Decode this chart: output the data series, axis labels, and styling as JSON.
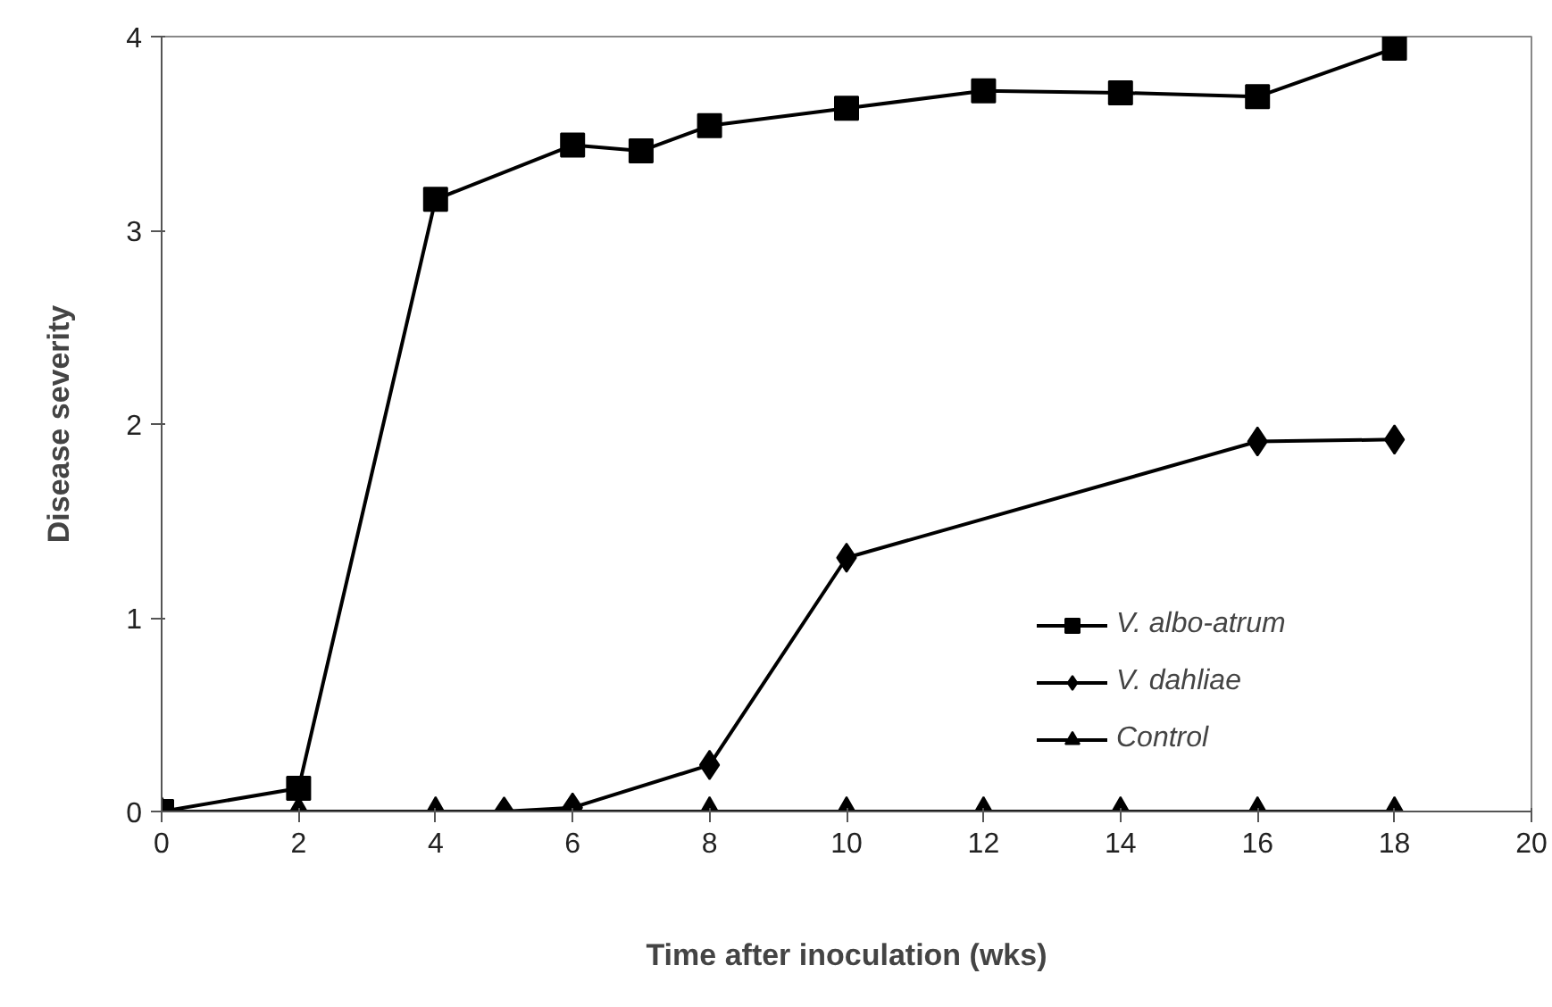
{
  "chart_data": {
    "type": "line",
    "xlabel": "Time after inoculation (wks)",
    "ylabel": "Disease severity",
    "xlim": [
      0,
      20
    ],
    "ylim": [
      0,
      4
    ],
    "xticks": [
      0,
      2,
      4,
      6,
      8,
      10,
      12,
      14,
      16,
      18,
      20
    ],
    "yticks": [
      0,
      1,
      2,
      3,
      4
    ],
    "grid": false,
    "legend": "right",
    "line_style": "solid",
    "series": [
      {
        "name": "V. albo-atrum",
        "color": "#000000",
        "marker": "square",
        "x": [
          0,
          2,
          4,
          6,
          7,
          8,
          10,
          12,
          14,
          16,
          18
        ],
        "values": [
          0,
          0.12,
          3.16,
          3.44,
          3.41,
          3.54,
          3.63,
          3.72,
          3.71,
          3.69,
          3.94
        ]
      },
      {
        "name": "V. dahliae",
        "color": "#000000",
        "marker": "diamond",
        "x": [
          5,
          6,
          8,
          10,
          16,
          18
        ],
        "values": [
          0,
          0.02,
          0.24,
          1.31,
          1.91,
          1.92
        ]
      },
      {
        "name": "Control",
        "color": "#000000",
        "marker": "triangle",
        "x": [
          0,
          2,
          4,
          6,
          8,
          10,
          12,
          14,
          16,
          18
        ],
        "values": [
          0,
          0,
          0,
          0,
          0,
          0,
          0,
          0,
          0,
          0
        ]
      }
    ]
  }
}
